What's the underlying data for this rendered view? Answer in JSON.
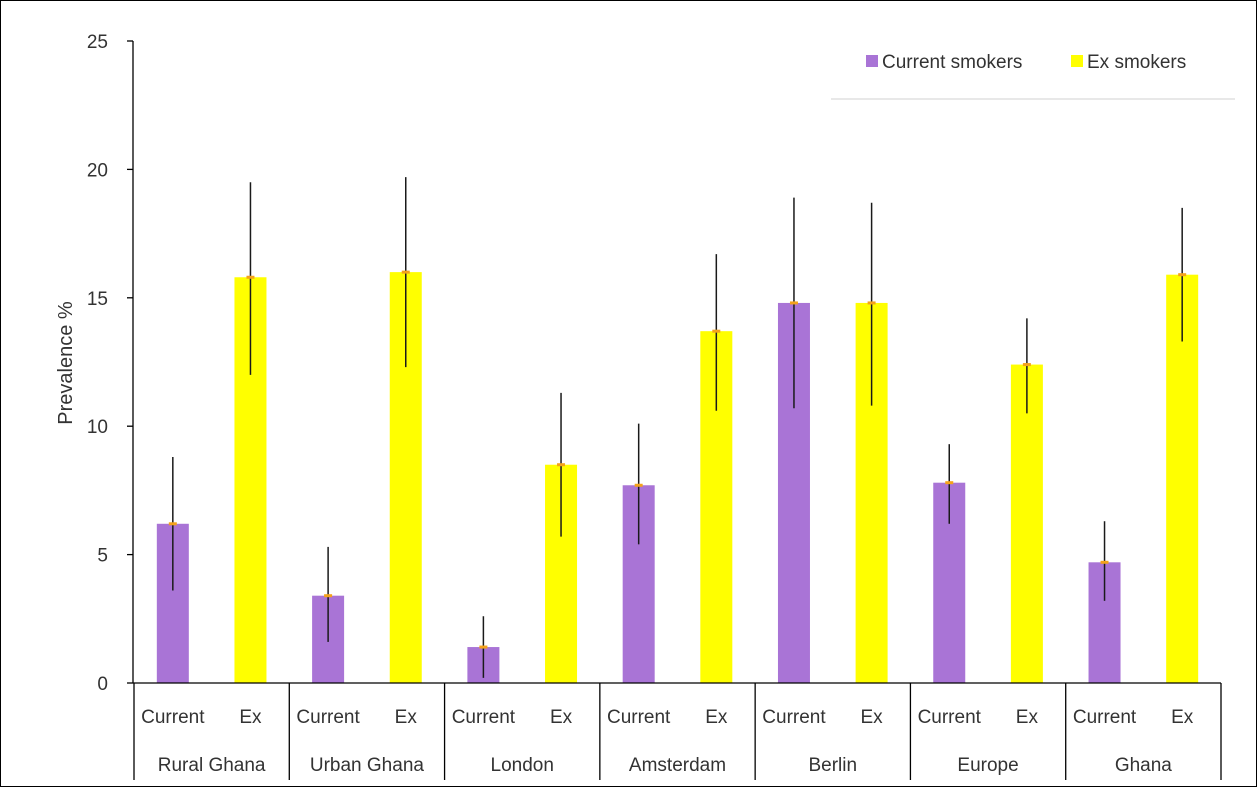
{
  "chart_data": {
    "type": "bar",
    "ylabel": "Prevalence %",
    "ylim": [
      0,
      25
    ],
    "yticks": [
      0,
      5,
      10,
      15,
      20,
      25
    ],
    "grid": false,
    "legend_position": "top-right",
    "groups": [
      "Rural Ghana",
      "Urban Ghana",
      "London",
      "Amsterdam",
      "Berlin",
      "Europe",
      "Ghana"
    ],
    "subcategories": [
      "Current",
      "Ex"
    ],
    "series": [
      {
        "name": "Current smokers",
        "color": "#a974d6",
        "values": [
          6.2,
          3.4,
          1.4,
          7.7,
          14.8,
          7.8,
          4.7
        ],
        "ci_low": [
          3.6,
          1.6,
          0.2,
          5.4,
          10.7,
          6.2,
          3.2
        ],
        "ci_high": [
          8.8,
          5.3,
          2.6,
          10.1,
          18.9,
          9.3,
          6.3
        ]
      },
      {
        "name": "Ex smokers",
        "color": "#ffff00",
        "values": [
          15.8,
          16.0,
          8.5,
          13.7,
          14.8,
          12.4,
          15.9
        ],
        "ci_low": [
          12.0,
          12.3,
          5.7,
          10.6,
          10.8,
          10.5,
          13.3
        ],
        "ci_high": [
          19.5,
          19.7,
          11.3,
          16.7,
          18.7,
          14.2,
          18.5
        ]
      }
    ],
    "mean_marker_color": "#f4a21a",
    "errorbar_color": "#1a1a1a"
  }
}
